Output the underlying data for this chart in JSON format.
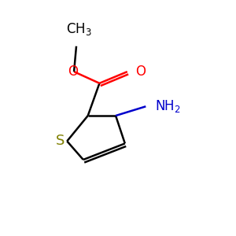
{
  "background_color": "#ffffff",
  "atom_colors": {
    "C": "#000000",
    "S": "#808000",
    "O": "#ff0000",
    "N": "#0000cc"
  },
  "figsize": [
    3.0,
    3.0
  ],
  "dpi": 100,
  "lw": 1.8,
  "fs": 12
}
